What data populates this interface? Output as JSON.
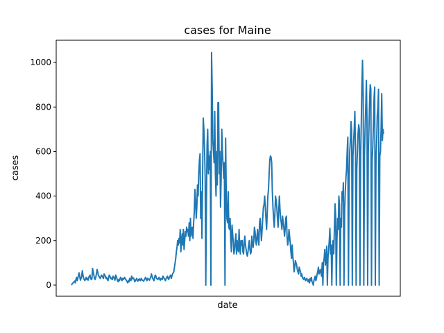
{
  "chart_data": {
    "type": "line",
    "title": "cases for Maine",
    "xlabel": "date",
    "ylabel": "cases",
    "ylim": [
      -50,
      1100
    ],
    "yticks": [
      0,
      200,
      400,
      600,
      800,
      1000
    ],
    "xticks": [],
    "grid": false,
    "legend": "none",
    "line_color": "#1f77b4",
    "series": [
      {
        "values": [
          0,
          5,
          8,
          12,
          15,
          18,
          10,
          25,
          35,
          20,
          30,
          45,
          55,
          38,
          22,
          30,
          40,
          65,
          45,
          30,
          25,
          20,
          28,
          35,
          25,
          30,
          22,
          35,
          40,
          45,
          30,
          25,
          28,
          75,
          60,
          45,
          30,
          25,
          35,
          50,
          70,
          60,
          45,
          40,
          35,
          30,
          38,
          45,
          40,
          35,
          30,
          50,
          45,
          40,
          30,
          35,
          25,
          20,
          30,
          45,
          40,
          35,
          28,
          32,
          25,
          40,
          35,
          30,
          22,
          45,
          40,
          30,
          20,
          15,
          25,
          20,
          30,
          35,
          25,
          20,
          30,
          25,
          28,
          35,
          30,
          25,
          20,
          15,
          10,
          20,
          15,
          30,
          25,
          20,
          40,
          35,
          28,
          32,
          25,
          15,
          20,
          25,
          30,
          20,
          18,
          25,
          28,
          22,
          20,
          30,
          25,
          22,
          20,
          18,
          25,
          30,
          35,
          25,
          20,
          30,
          28,
          25,
          22,
          30,
          35,
          50,
          40,
          30,
          25,
          20,
          35,
          45,
          40,
          30,
          28,
          25,
          30,
          35,
          25,
          22,
          30,
          28,
          25,
          40,
          35,
          30,
          25,
          20,
          30,
          35,
          40,
          30,
          25,
          35,
          40,
          45,
          30,
          40,
          50,
          55,
          60,
          80,
          100,
          120,
          150,
          170,
          200,
          180,
          210,
          190,
          250,
          150,
          200,
          230,
          180,
          250,
          160,
          200,
          240,
          220,
          260,
          240,
          250,
          220,
          280,
          200,
          300,
          220,
          250,
          260,
          210,
          280,
          330,
          430,
          380,
          300,
          350,
          450,
          400,
          500,
          560,
          590,
          300,
          420,
          210,
          480,
          750,
          700,
          620,
          480,
          0,
          380,
          630,
          700,
          500,
          580,
          520,
          600,
          0,
          1045,
          880,
          650,
          600,
          550,
          780,
          500,
          400,
          600,
          450,
          820,
          820,
          500,
          600,
          350,
          480,
          700,
          600,
          540,
          480,
          550,
          0,
          660,
          400,
          300,
          280,
          420,
          260,
          250,
          300,
          200,
          150,
          270,
          230,
          190,
          140,
          160,
          200,
          230,
          140,
          200,
          160,
          150,
          250,
          170,
          140,
          200,
          180,
          200,
          150,
          140,
          190,
          220,
          180,
          160,
          140,
          130,
          150,
          180,
          200,
          160,
          140,
          150,
          220,
          180,
          170,
          200,
          260,
          240,
          200,
          180,
          220,
          250,
          200,
          180,
          280,
          300,
          250,
          200,
          250,
          300,
          350,
          360,
          400,
          350,
          300,
          250,
          320,
          400,
          430,
          500,
          560,
          580,
          575,
          550,
          420,
          350,
          300,
          260,
          320,
          400,
          380,
          350,
          300,
          260,
          330,
          400,
          340,
          300,
          280,
          250,
          310,
          280,
          260,
          220,
          250,
          300,
          310,
          220,
          180,
          200,
          250,
          220,
          190,
          150,
          120,
          180,
          130,
          100,
          60,
          80,
          110,
          100,
          90,
          70,
          60,
          50,
          80,
          70,
          60,
          40,
          50,
          35,
          30,
          25,
          35,
          30,
          20,
          25,
          30,
          20,
          15,
          25,
          10,
          30,
          20,
          35,
          15,
          10,
          0,
          20,
          30,
          40,
          20,
          30,
          50,
          60,
          80,
          50,
          60,
          70,
          55,
          40,
          100,
          0,
          100,
          120,
          160,
          90,
          110,
          175,
          0,
          120,
          160,
          200,
          255,
          140,
          180,
          0,
          170,
          200,
          140,
          250,
          365,
          310,
          0,
          200,
          300,
          250,
          400,
          360,
          0,
          300,
          260,
          420,
          380,
          460,
          0,
          330,
          420,
          480,
          520,
          600,
          665,
          0,
          450,
          600,
          650,
          735,
          690,
          0,
          580,
          640,
          700,
          780,
          600,
          0,
          520,
          600,
          680,
          720,
          700,
          0,
          580,
          720,
          900,
          1010,
          850,
          0,
          580,
          700,
          800,
          920,
          740,
          0,
          600,
          700,
          820,
          900,
          880,
          0,
          560,
          620,
          720,
          840,
          890,
          0,
          550,
          640,
          760,
          800,
          880,
          0,
          580,
          600,
          700,
          860,
          650,
          700,
          680
        ]
      }
    ]
  }
}
